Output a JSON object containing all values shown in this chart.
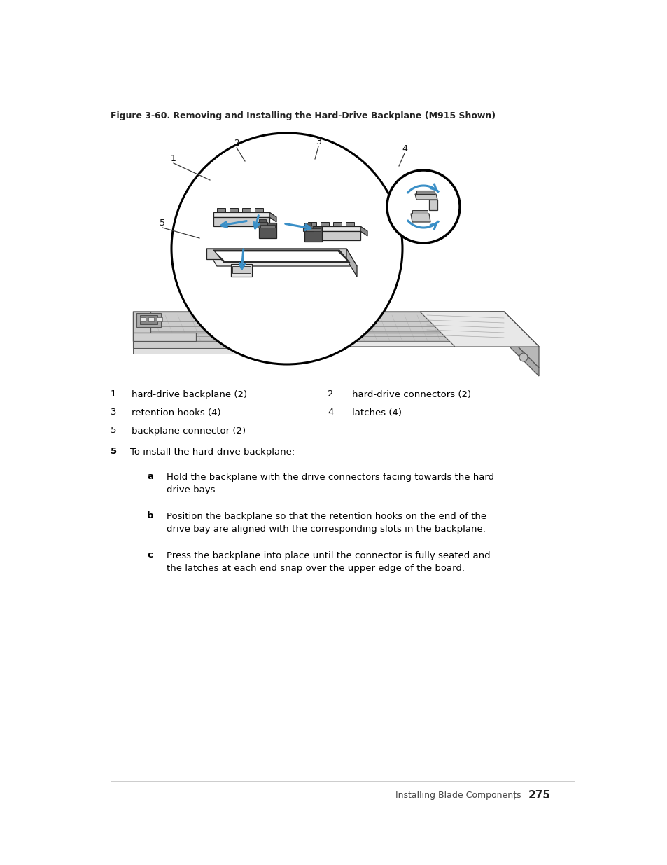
{
  "fig_caption_bold": "Figure 3-60.",
  "fig_caption_rest": "    Removing and Installing the Hard-Drive Backplane (M915 Shown)",
  "legend_rows": [
    [
      [
        "1",
        "hard-drive backplane (2)"
      ],
      [
        "2",
        "hard-drive connectors (2)"
      ]
    ],
    [
      [
        "3",
        "retention hooks (4)"
      ],
      [
        "4",
        "latches (4)"
      ]
    ],
    [
      [
        "5",
        "backplane connector (2)"
      ],
      []
    ]
  ],
  "step_bold": "5",
  "step_text": "To install the hard-drive backplane:",
  "substeps": [
    {
      "id": "a",
      "line1": "Hold the backplane with the drive connectors facing towards the hard",
      "line2": "drive bays."
    },
    {
      "id": "b",
      "line1": "Position the backplane so that the retention hooks on the end of the",
      "line2": "drive bay are aligned with the corresponding slots in the backplane."
    },
    {
      "id": "c",
      "line1": "Press the backplane into place until the connector is fully seated and",
      "line2": "the latches at each end snap over the upper edge of the board."
    }
  ],
  "footer_left": "Installing Blade Components",
  "footer_bar": "|",
  "footer_page": "275",
  "blue": "#3a8fc7",
  "dark": "#222222",
  "mid": "#888888",
  "light": "#cccccc",
  "vlight": "#e8e8e8",
  "white": "#ffffff",
  "bg": "#ffffff"
}
